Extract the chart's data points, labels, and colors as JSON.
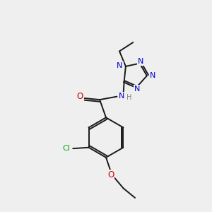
{
  "bg_color": "#efefef",
  "bond_color": "#1a1a1a",
  "atom_colors": {
    "N": "#0000cc",
    "O": "#cc0000",
    "Cl": "#00aa00",
    "C": "#1a1a1a",
    "H": "#888888"
  },
  "font_size": 7.5,
  "bond_lw": 1.4,
  "ring_r": 0.95,
  "tet_r": 0.58
}
